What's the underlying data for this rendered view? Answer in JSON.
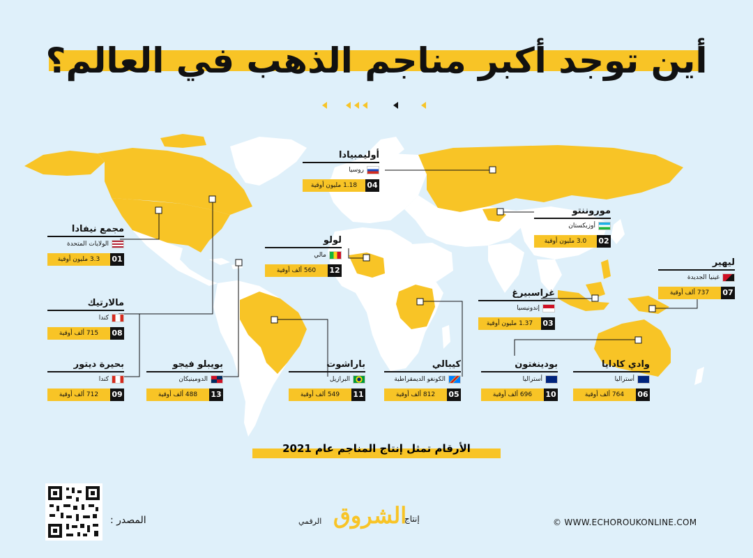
{
  "title": "أين توجد أكبر مناجم الذهب في العالم؟",
  "note": "الأرقام تمثل إنتاج المناجم عام 2021",
  "footer": {
    "source_label": "المصدر :",
    "produced_by": "إنتاج",
    "logo_text": "الشروق",
    "digital": "الرقمي",
    "website": "© WWW.ECHOROUKONLINE.COM"
  },
  "colors": {
    "accent": "#f8c426",
    "land": "#ffffff",
    "sea": "#dff0fa",
    "text": "#111111"
  },
  "mines": [
    {
      "rank": "01",
      "name": "مجمع نيفادا",
      "country": "الولايات المتحدة",
      "flag": "us-flag",
      "value": "3.3 مليون أوقية"
    },
    {
      "rank": "02",
      "name": "موروننتو",
      "country": "أوزبكستان",
      "flag": "uz-flag",
      "value": "3.0 مليون أوقية"
    },
    {
      "rank": "03",
      "name": "غراسبيرغ",
      "country": "إندونيسيا",
      "flag": "id-flag",
      "value": "1.37 مليون أوقية"
    },
    {
      "rank": "04",
      "name": "أوليمبيادا",
      "country": "روسيا",
      "flag": "ru-flag",
      "value": "1.18 مليون أوقية"
    },
    {
      "rank": "05",
      "name": "كيبالي",
      "country": "الكونغو الديمقراطية",
      "flag": "cd-flag",
      "value": "812 ألف أوقية"
    },
    {
      "rank": "06",
      "name": "وادي كادايا",
      "country": "أستراليا",
      "flag": "au-flag",
      "value": "764 ألف أوقية"
    },
    {
      "rank": "07",
      "name": "ليهير",
      "country": "غينيا الجديدة",
      "flag": "pg-flag",
      "value": "737 ألف أوقية"
    },
    {
      "rank": "08",
      "name": "مالارتيك",
      "country": "كندا",
      "flag": "ca-flag",
      "value": "715 ألف أوقية"
    },
    {
      "rank": "09",
      "name": "بحيرة ديتور",
      "country": "كندا",
      "flag": "ca-flag",
      "value": "712 ألف أوقية"
    },
    {
      "rank": "10",
      "name": "بودينغتون",
      "country": "أستراليا",
      "flag": "au-flag",
      "value": "696 ألف أوقية"
    },
    {
      "rank": "11",
      "name": "باراشوت",
      "country": "البرازيل",
      "flag": "br-flag",
      "value": "549 ألف أوقية"
    },
    {
      "rank": "12",
      "name": "لولو",
      "country": "مالي",
      "flag": "ml-flag",
      "value": "560 ألف أوقية"
    },
    {
      "rank": "13",
      "name": "بويبلو فيجو",
      "country": "الدومينيكان",
      "flag": "do-flag",
      "value": "488 ألف أوقية"
    }
  ]
}
